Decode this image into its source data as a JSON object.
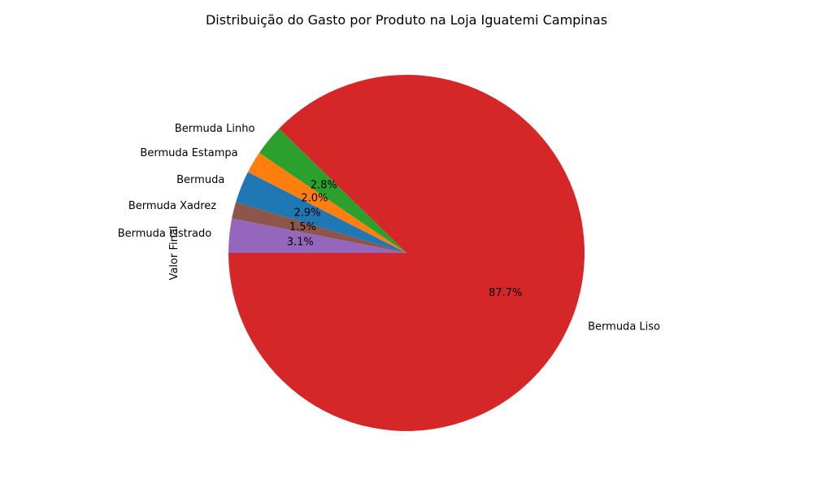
{
  "chart_data": {
    "type": "pie",
    "title": "Distribuição do Gasto por Produto na Loja Iguatemi Campinas",
    "ylabel": "Valor Final",
    "start_angle_deg": 180,
    "counterclockwise": true,
    "slices": [
      {
        "label": "Bermuda Liso",
        "percent": 87.7,
        "pct_label": "87.7%",
        "color": "#d62728"
      },
      {
        "label": "Bermuda Linho",
        "percent": 2.8,
        "pct_label": "2.8%",
        "color": "#2ca02c"
      },
      {
        "label": "Bermuda Estampa",
        "percent": 2.0,
        "pct_label": "2.0%",
        "color": "#ff7f0e"
      },
      {
        "label": "Bermuda",
        "percent": 2.9,
        "pct_label": "2.9%",
        "color": "#1f77b4"
      },
      {
        "label": "Bermuda Xadrez",
        "percent": 1.5,
        "pct_label": "1.5%",
        "color": "#8c564b"
      },
      {
        "label": "Bermuda Listrado",
        "percent": 3.1,
        "pct_label": "3.1%",
        "color": "#9467bd"
      }
    ]
  }
}
